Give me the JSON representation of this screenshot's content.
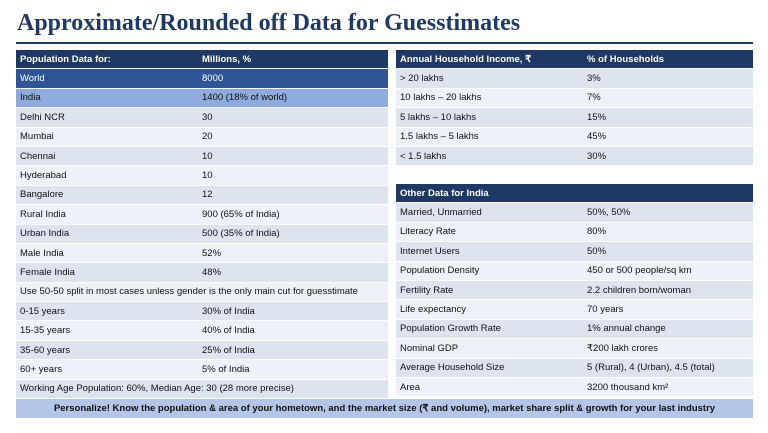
{
  "title": "Approximate/Rounded off Data for Guesstimates",
  "left_table": {
    "header": [
      "Population Data for:",
      "Millions, %"
    ],
    "rows": [
      [
        "World",
        "8000"
      ],
      [
        "India",
        "1400 (18% of world)"
      ],
      [
        "Delhi NCR",
        "30"
      ],
      [
        "Mumbai",
        "20"
      ],
      [
        "Chennai",
        "10"
      ],
      [
        "Hyderabad",
        "10"
      ],
      [
        "Bangalore",
        "12"
      ],
      [
        "Rural India",
        "900 (65% of India)"
      ],
      [
        "Urban India",
        "500 (35% of India)"
      ],
      [
        "Male India",
        "52%"
      ],
      [
        "Female India",
        "48%"
      ],
      [
        "Use 50-50 split in most cases unless gender is the only main cut for guesstimate"
      ],
      [
        "0-15 years",
        "30% of India"
      ],
      [
        "15-35 years",
        "40% of India"
      ],
      [
        "35-60 years",
        "25% of India"
      ],
      [
        "60+ years",
        "5% of India"
      ],
      [
        "Working Age Population: 60%, Median Age: 30 (28 more precise)"
      ]
    ]
  },
  "income_table": {
    "header": [
      "Annual Household Income, ₹",
      "% of Households"
    ],
    "rows": [
      [
        "> 20 lakhs",
        "3%"
      ],
      [
        "10 lakhs – 20 lakhs",
        "7%"
      ],
      [
        "5 lakhs – 10 lakhs",
        "15%"
      ],
      [
        "1.5 lakhs – 5 lakhs",
        "45%"
      ],
      [
        "< 1.5 lakhs",
        "30%"
      ]
    ]
  },
  "other_table": {
    "header": [
      "Other Data for India"
    ],
    "rows": [
      [
        "Married, Unmarried",
        "50%, 50%"
      ],
      [
        "Literacy Rate",
        "80%"
      ],
      [
        "Internet Users",
        "50%"
      ],
      [
        "Population Density",
        "450 or 500 people/sq km"
      ],
      [
        "Fertility Rate",
        "2.2 children born/woman"
      ],
      [
        "Life expectancy",
        "70 years"
      ],
      [
        "Population Growth Rate",
        "1% annual change"
      ],
      [
        "Nominal GDP",
        "₹200 lakh crores"
      ],
      [
        "Average Household Size",
        "5 (Rural), 4 (Urban), 4.5 (total)"
      ],
      [
        "Area",
        "3200 thousand km²"
      ]
    ]
  },
  "footer": "Personalize! Know the population & area of your hometown, and the market size (₹ and volume), market share split & growth for your last industry"
}
